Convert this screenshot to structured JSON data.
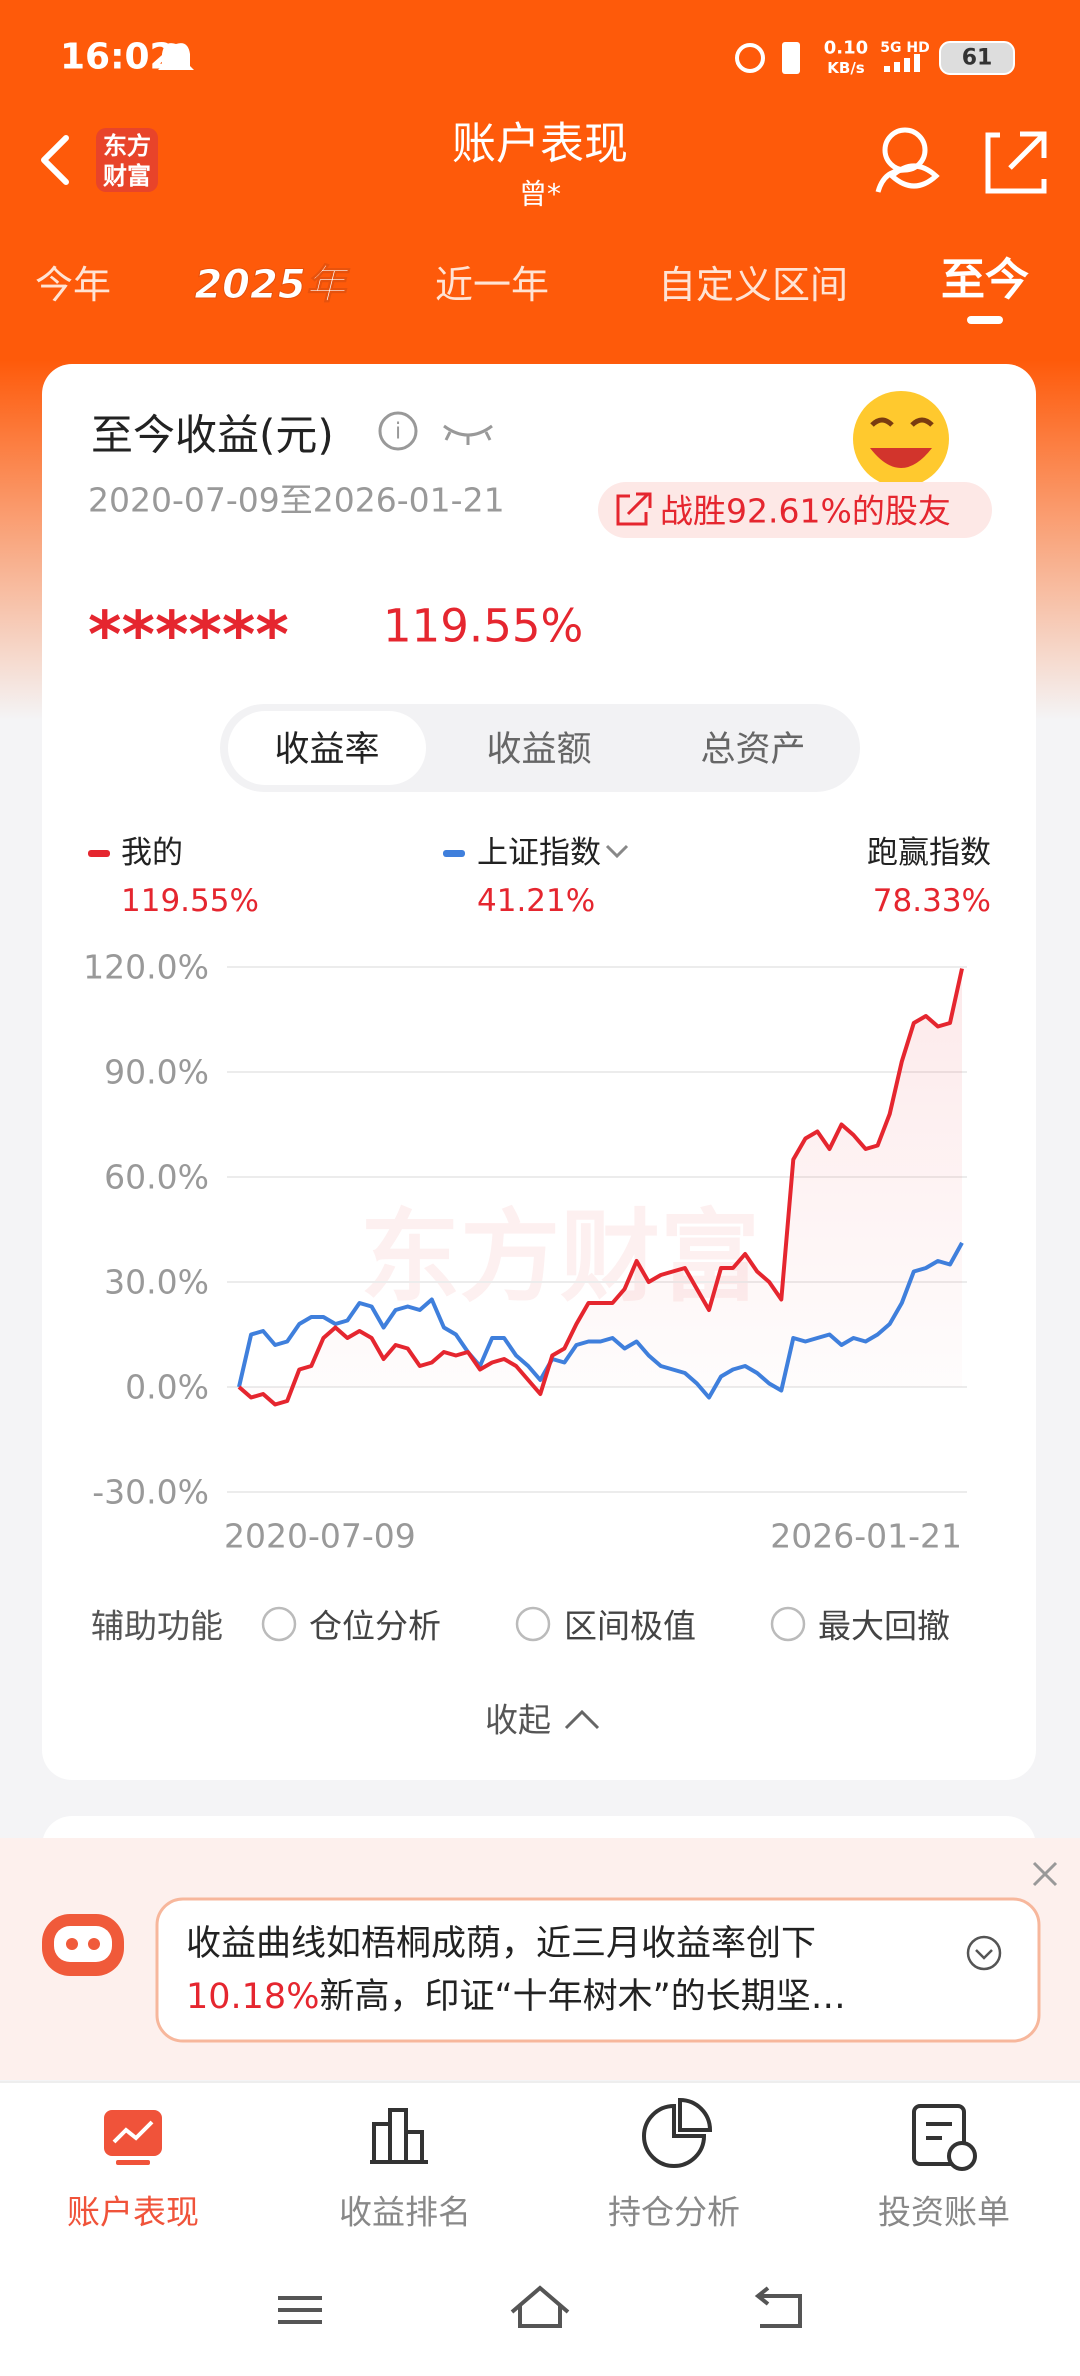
{
  "status_bar": {
    "time": "16:02",
    "net_speed": "0.10",
    "net_unit": "KB/s",
    "signal": "5G HD",
    "battery": "61"
  },
  "header": {
    "logo": [
      "东方",
      "财富"
    ],
    "title": "账户表现",
    "subtitle": "曾*"
  },
  "tabs": [
    "今年",
    "2025年",
    "近一年",
    "自定义区间",
    "至今"
  ],
  "card": {
    "title": "至今收益(元)",
    "date_range": "2020-07-09至2026-01-21",
    "badge": "战胜92.61%的股友",
    "masked_amount": "******",
    "return": "119.55%",
    "segments": [
      "收益率",
      "收益额",
      "总资产"
    ],
    "legend_values": [
      "119.55%",
      "41.21%",
      "78.33%"
    ],
    "excess_label": "跑赢指数",
    "watermark": "东方财富",
    "aux_label": "辅助功能",
    "aux_options": [
      "仓位分析",
      "区间极值",
      "最大回撤"
    ],
    "collapse": "收起"
  },
  "chart_data": {
    "type": "line",
    "categories": [
      "2020-07-09",
      null,
      null,
      null,
      null,
      null,
      null,
      null,
      null,
      null,
      null,
      null,
      null,
      null,
      null,
      null,
      null,
      null,
      null,
      null,
      null,
      null,
      null,
      null,
      null,
      null,
      null,
      null,
      null,
      null,
      null,
      null,
      null,
      null,
      null,
      null,
      null,
      null,
      null,
      null,
      null,
      null,
      null,
      null,
      null,
      null,
      null,
      null,
      null,
      null,
      null,
      null,
      null,
      null,
      null,
      null,
      null,
      null,
      null,
      null,
      "2026-01-21"
    ],
    "series": [
      {
        "name": "我的",
        "color": "#e5262f",
        "values": [
          0,
          -3,
          -2,
          -5,
          -4,
          5,
          6,
          14,
          17,
          14,
          16,
          14,
          8,
          12,
          11,
          6,
          7,
          10,
          9,
          10,
          5,
          7,
          8,
          6,
          2,
          -2,
          9,
          11,
          18,
          24,
          24,
          24,
          28,
          36,
          30,
          32,
          33,
          34,
          28,
          22,
          34,
          34,
          38,
          33,
          30,
          25,
          65,
          71,
          73,
          68,
          75,
          72,
          68,
          69,
          78,
          93,
          104,
          106,
          103,
          104,
          119.55
        ]
      },
      {
        "name": "上证指数",
        "color": "#3f7fdc",
        "values": [
          0,
          15,
          16,
          12,
          13,
          18,
          20,
          20,
          18,
          19,
          24,
          23,
          17,
          22,
          23,
          22,
          25,
          17,
          15,
          10,
          6,
          14,
          14,
          9,
          6,
          2,
          8,
          7,
          12,
          13,
          13,
          14,
          11,
          13,
          9,
          6,
          5,
          4,
          1,
          -3,
          3,
          5,
          6,
          4,
          1,
          -1,
          14,
          13,
          14,
          15,
          12,
          14,
          13,
          15,
          18,
          24,
          33,
          34,
          36,
          35,
          41.21
        ]
      }
    ],
    "ylim": [
      -30,
      120
    ],
    "yticks": [
      {
        "value": 120,
        "label": "120.0%"
      },
      {
        "value": 90,
        "label": "90.0%"
      },
      {
        "value": 60,
        "label": "60.0%"
      },
      {
        "value": 30,
        "label": "30.0%"
      },
      {
        "value": 0,
        "label": "0.0%"
      },
      {
        "value": -30,
        "label": "-30.0%"
      }
    ],
    "grid": true
  },
  "tip": {
    "line1": "收益曲线如梧桐成荫，近三月收益率创下",
    "highlight": "10.18%",
    "line2": "新高，印证“十年树木”的长期坚…"
  },
  "bottom_nav": [
    "账户表现",
    "收益排名",
    "持仓分析",
    "投资账单"
  ]
}
